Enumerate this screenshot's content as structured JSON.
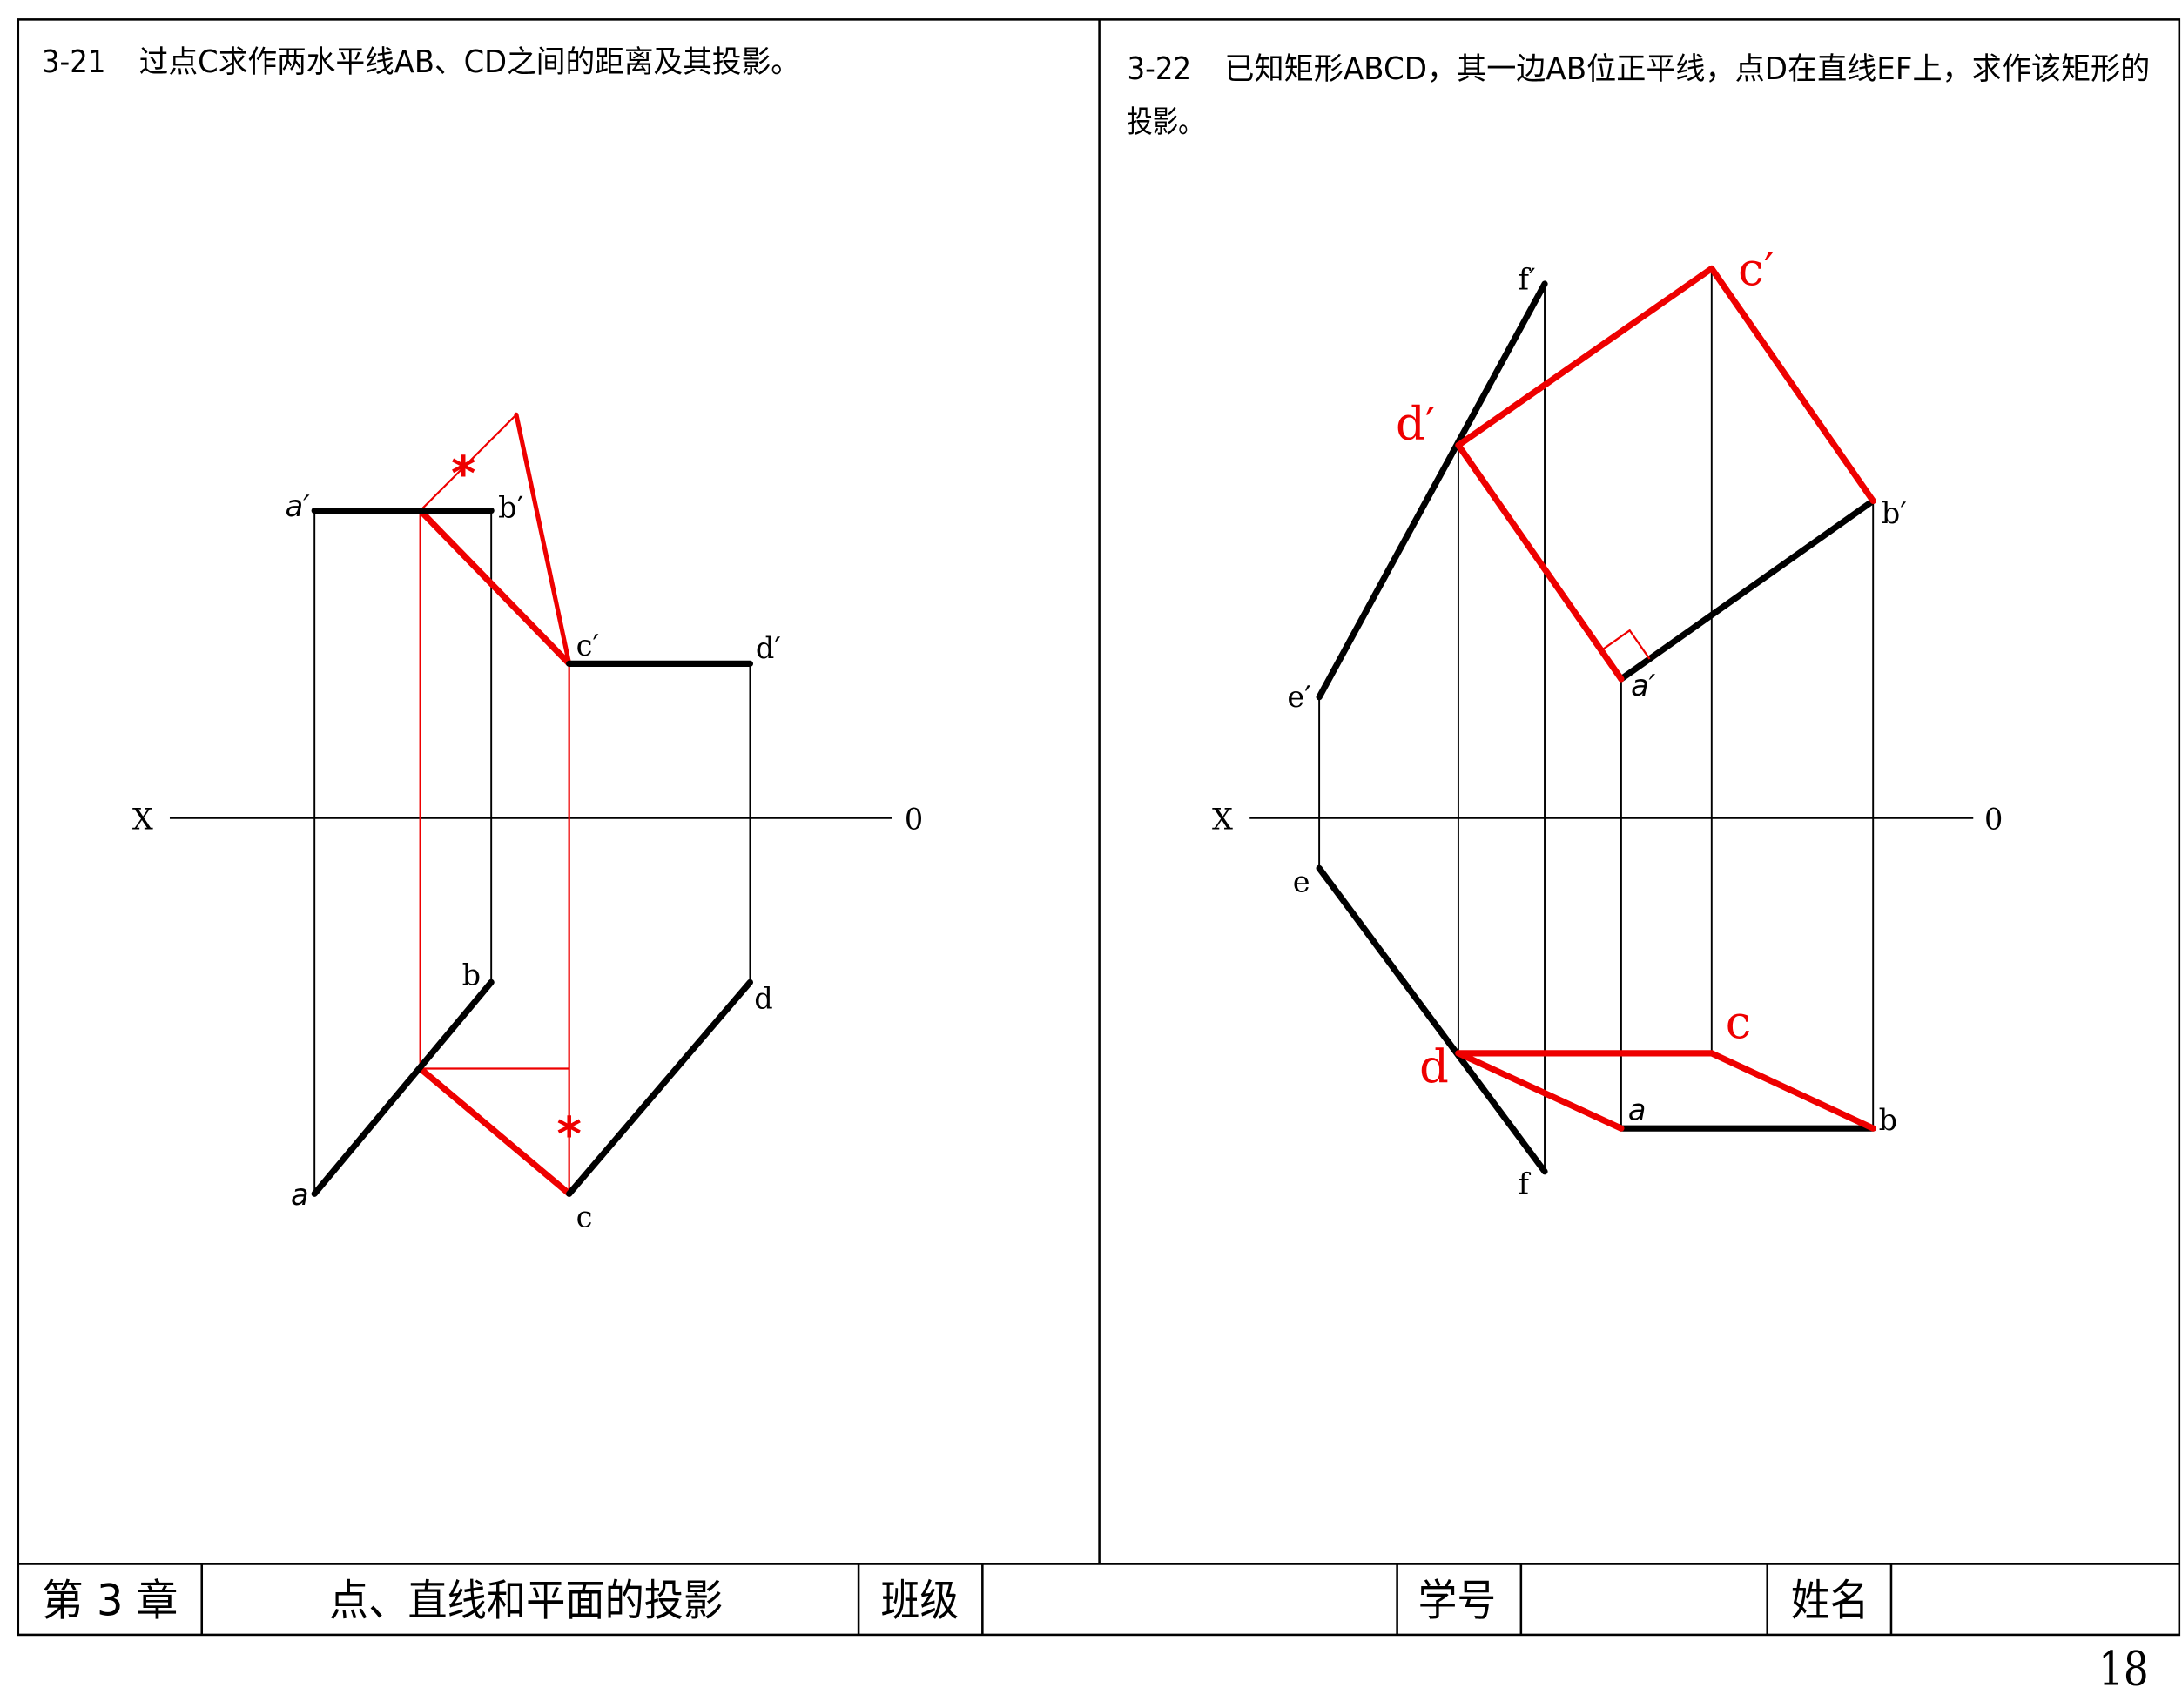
{
  "colors": {
    "ink": "#000000",
    "solution": "#ee0000"
  },
  "problem_3_21": {
    "number": "3-21",
    "title": "过点C求作两水平线AB、CD之间的距离及其投影。",
    "axis": {
      "x_label": "X",
      "origin_label": "0"
    },
    "labels": {
      "a_prime": "a′",
      "b_prime": "b′",
      "c_prime": "c′",
      "d_prime": "d′",
      "a": "a",
      "b": "b",
      "c": "c",
      "d": "d"
    },
    "marks": {
      "equal_length_1": "*",
      "equal_length_2": "*"
    }
  },
  "problem_3_22": {
    "number": "3-22",
    "title_lines": [
      "已知矩形ABCD，其一边AB位正平线，点D在直线EF上，求作该矩形的",
      "投影。"
    ],
    "axis": {
      "x_label": "X",
      "origin_label": "0"
    },
    "labels": {
      "a_prime": "a′",
      "b_prime": "b′",
      "c_prime": "c′",
      "d_prime": "d′",
      "e_prime": "e′",
      "f_prime": "f′",
      "a": "a",
      "b": "b",
      "c": "c",
      "d": "d",
      "e": "e",
      "f": "f"
    }
  },
  "footer": {
    "chapter": "第 3 章",
    "chapter_title": "点、直线和平面的投影",
    "class_label": "班级",
    "student_id_label": "学号",
    "name_label": "姓名"
  },
  "page_number": "18"
}
